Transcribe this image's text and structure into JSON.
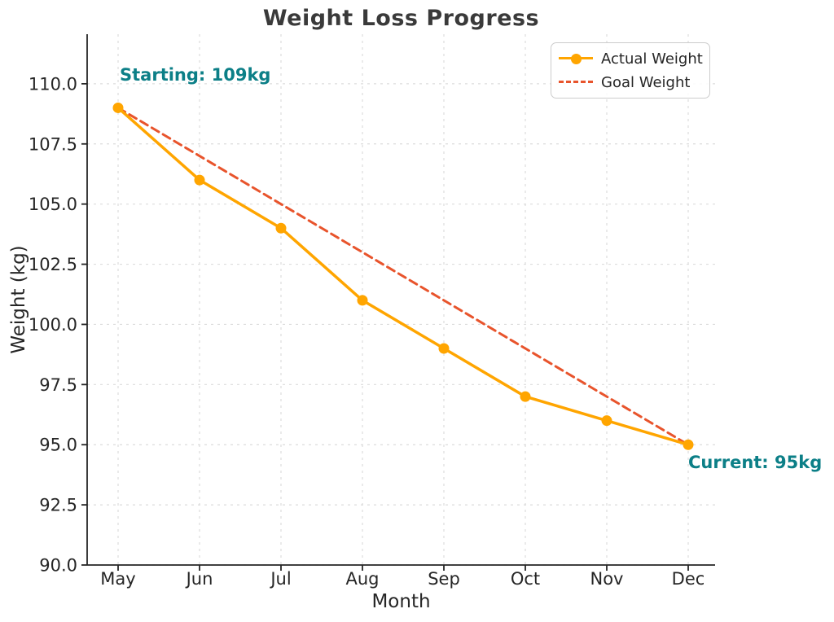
{
  "page": {
    "background": "#FFFFFF"
  },
  "chart_data": {
    "type": "line",
    "title": "Weight Loss Progress",
    "xlabel": "Month",
    "ylabel": "Weight (kg)",
    "categories": [
      "May",
      "Jun",
      "Jul",
      "Aug",
      "Sep",
      "Oct",
      "Nov",
      "Dec"
    ],
    "series": [
      {
        "name": "Actual Weight",
        "values": [
          109,
          106,
          104,
          101,
          99,
          97,
          96,
          95
        ],
        "color": "#FFA500",
        "style": "solid",
        "marker": "circle"
      },
      {
        "name": "Goal Weight",
        "values": [
          109,
          107,
          105,
          103,
          101,
          99,
          97,
          95
        ],
        "color": "#E8542C",
        "style": "dashed",
        "marker": "none"
      }
    ],
    "ytick_labels": [
      "90.0",
      "92.5",
      "95.0",
      "97.5",
      "100.0",
      "102.5",
      "105.0",
      "107.5",
      "110.0"
    ],
    "yticks": [
      90,
      92.5,
      95,
      97.5,
      100,
      102.5,
      105,
      107.5,
      110
    ],
    "ylim": [
      90,
      112.06
    ],
    "grid": true,
    "legend_position": "upper right",
    "annotations": [
      {
        "id": "starting",
        "text": "Starting: 109kg",
        "color": "#0C7F87"
      },
      {
        "id": "current",
        "text": "Current: 95kg",
        "color": "#0C7F87"
      }
    ],
    "colors": {
      "title": "#3A3A3A",
      "axis": "#262626",
      "tick_label": "#262626",
      "grid": "#DCDCDC"
    }
  }
}
